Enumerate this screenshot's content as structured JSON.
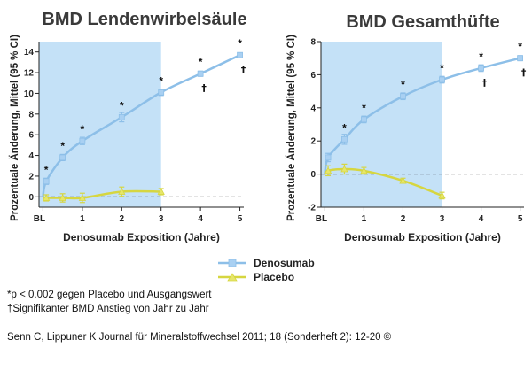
{
  "colors": {
    "denosumab": "#8dbfe8",
    "denosumab_marker": "#a9d0f2",
    "placebo": "#d6d640",
    "placebo_marker": "#e6e66a",
    "shade": "#c4e1f7",
    "axis": "#222222"
  },
  "chart_data": [
    {
      "type": "line",
      "title": "BMD Lendenwirbelsäule",
      "xlabel": "Denosumab Exposition (Jahre)",
      "ylabel": "Prozentuale Änderung, Mittel (95 % CI)",
      "ylim": [
        -1,
        15
      ],
      "xlim": [
        -0.1,
        5.1
      ],
      "yticks": [
        0,
        2,
        4,
        6,
        8,
        10,
        12,
        14
      ],
      "xticks": [
        {
          "x": 0,
          "label": "BL"
        },
        {
          "x": 1,
          "label": "1"
        },
        {
          "x": 2,
          "label": "2"
        },
        {
          "x": 3,
          "label": "3"
        },
        {
          "x": 4,
          "label": "4"
        },
        {
          "x": 5,
          "label": "5"
        }
      ],
      "shaded_region": [
        0,
        3
      ],
      "reference_line": 0,
      "series": [
        {
          "name": "Denosumab",
          "x": [
            0,
            0.083,
            0.5,
            1,
            2,
            3,
            4,
            5
          ],
          "y": [
            0,
            1.5,
            3.8,
            5.4,
            7.7,
            10.1,
            11.9,
            13.7
          ],
          "err": [
            0,
            0.3,
            0.3,
            0.35,
            0.45,
            0.3,
            0.25,
            0.2
          ]
        },
        {
          "name": "Placebo",
          "x": [
            0,
            0.083,
            0.5,
            1,
            2,
            3
          ],
          "y": [
            0,
            -0.1,
            -0.1,
            -0.1,
            0.5,
            0.5
          ],
          "err": [
            0,
            0.3,
            0.4,
            0.45,
            0.45,
            0.3
          ]
        }
      ],
      "annotations": [
        {
          "x": 0.083,
          "y": 1.5,
          "text": "*"
        },
        {
          "x": 0.5,
          "y": 3.8,
          "text": "*"
        },
        {
          "x": 1,
          "y": 5.4,
          "text": "*"
        },
        {
          "x": 2,
          "y": 7.7,
          "text": "*"
        },
        {
          "x": 3,
          "y": 10.1,
          "text": "*"
        },
        {
          "x": 4,
          "y": 11.9,
          "text": "*"
        },
        {
          "x": 5,
          "y": 13.7,
          "text": "*"
        }
      ],
      "daggers": [
        {
          "x": 4,
          "y": 11.9,
          "text": "†"
        },
        {
          "x": 5,
          "y": 13.7,
          "text": "†"
        }
      ]
    },
    {
      "type": "line",
      "title": "BMD Gesamthüfte",
      "xlabel": "Denosumab Exposition (Jahre)",
      "ylabel": "Prozentuale Änderung, Mittel (95 % CI)",
      "ylim": [
        -2,
        8
      ],
      "xlim": [
        -0.1,
        5.1
      ],
      "yticks": [
        -2,
        0,
        2,
        4,
        6,
        8
      ],
      "xticks": [
        {
          "x": 0,
          "label": "BL"
        },
        {
          "x": 1,
          "label": "1"
        },
        {
          "x": 2,
          "label": "2"
        },
        {
          "x": 3,
          "label": "3"
        },
        {
          "x": 4,
          "label": "4"
        },
        {
          "x": 5,
          "label": "5"
        }
      ],
      "shaded_region": [
        0,
        3
      ],
      "reference_line": 0,
      "series": [
        {
          "name": "Denosumab",
          "x": [
            0,
            0.083,
            0.5,
            1,
            2,
            3,
            4,
            5
          ],
          "y": [
            0,
            1.0,
            2.1,
            3.3,
            4.7,
            5.7,
            6.4,
            7.0
          ],
          "err": [
            0,
            0.25,
            0.3,
            0.2,
            0.2,
            0.2,
            0.2,
            0.15
          ]
        },
        {
          "name": "Placebo",
          "x": [
            0,
            0.083,
            0.5,
            1,
            2,
            3
          ],
          "y": [
            0,
            0.2,
            0.3,
            0.2,
            -0.4,
            -1.3
          ],
          "err": [
            0,
            0.3,
            0.3,
            0.2,
            0.15,
            0.2
          ]
        }
      ],
      "annotations": [
        {
          "x": 0.5,
          "y": 2.1,
          "text": "*"
        },
        {
          "x": 1,
          "y": 3.3,
          "text": "*"
        },
        {
          "x": 2,
          "y": 4.7,
          "text": "*"
        },
        {
          "x": 3,
          "y": 5.7,
          "text": "*"
        },
        {
          "x": 4,
          "y": 6.4,
          "text": "*"
        },
        {
          "x": 5,
          "y": 7.0,
          "text": "*"
        }
      ],
      "daggers": [
        {
          "x": 4,
          "y": 6.4,
          "text": "†"
        },
        {
          "x": 5,
          "y": 7.0,
          "text": "†"
        }
      ]
    }
  ],
  "legend": {
    "items": [
      {
        "label": "Denosumab",
        "series": "denosumab"
      },
      {
        "label": "Placebo",
        "series": "placebo"
      }
    ]
  },
  "footnotes": [
    "*p < 0.002 gegen Placebo und Ausgangswert",
    "†Signifikanter BMD Anstieg von Jahr zu Jahr"
  ],
  "citation": "Senn C, Lippuner K Journal für Mineralstoffwechsel 2011; 18 (Sonderheft 2): 12-20 ©"
}
